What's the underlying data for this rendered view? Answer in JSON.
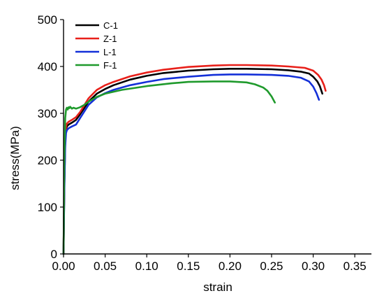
{
  "chart_data": {
    "type": "line",
    "title": "",
    "xlabel": "strain",
    "ylabel": "stress(MPa)",
    "xlim": [
      0,
      0.37
    ],
    "ylim": [
      0,
      500
    ],
    "xticks": [
      0,
      0.05,
      0.1,
      0.15,
      0.2,
      0.25,
      0.3,
      0.35
    ],
    "xtick_labels": [
      "0.00",
      "0.05",
      "0.10",
      "0.15",
      "0.20",
      "0.25",
      "0.30",
      "0.35"
    ],
    "yticks": [
      0,
      100,
      200,
      300,
      400,
      500
    ],
    "ytick_labels": [
      "0",
      "100",
      "200",
      "300",
      "400",
      "500"
    ],
    "grid": false,
    "legend_position": "top-left",
    "series": [
      {
        "name": "C-1",
        "color": "#000000",
        "x": [
          0,
          0.001,
          0.002,
          0.003,
          0.004,
          0.006,
          0.01,
          0.015,
          0.02,
          0.03,
          0.04,
          0.05,
          0.06,
          0.08,
          0.1,
          0.12,
          0.15,
          0.18,
          0.2,
          0.22,
          0.25,
          0.27,
          0.285,
          0.295,
          0.3,
          0.305,
          0.308,
          0.311
        ],
        "y": [
          0,
          150,
          240,
          265,
          272,
          276,
          280,
          286,
          298,
          325,
          342,
          352,
          360,
          372,
          380,
          386,
          391,
          394,
          395,
          395,
          394,
          392,
          389,
          385,
          378,
          368,
          358,
          342
        ]
      },
      {
        "name": "Z-1",
        "color": "#e8201a",
        "x": [
          0,
          0.001,
          0.002,
          0.003,
          0.004,
          0.006,
          0.01,
          0.015,
          0.02,
          0.03,
          0.04,
          0.05,
          0.06,
          0.08,
          0.1,
          0.12,
          0.15,
          0.18,
          0.2,
          0.22,
          0.25,
          0.27,
          0.29,
          0.3,
          0.306,
          0.31,
          0.313,
          0.315
        ],
        "y": [
          0,
          160,
          250,
          272,
          278,
          282,
          286,
          292,
          303,
          332,
          350,
          360,
          367,
          379,
          387,
          393,
          399,
          402,
          403,
          403,
          402,
          400,
          397,
          391,
          382,
          372,
          360,
          348
        ]
      },
      {
        "name": "L-1",
        "color": "#1430d8",
        "x": [
          0,
          0.001,
          0.002,
          0.003,
          0.004,
          0.006,
          0.01,
          0.015,
          0.02,
          0.03,
          0.04,
          0.05,
          0.06,
          0.08,
          0.1,
          0.12,
          0.15,
          0.18,
          0.2,
          0.22,
          0.25,
          0.27,
          0.285,
          0.295,
          0.3,
          0.304,
          0.307
        ],
        "y": [
          0,
          140,
          230,
          258,
          264,
          268,
          272,
          276,
          290,
          318,
          334,
          343,
          350,
          360,
          367,
          373,
          378,
          382,
          383,
          383,
          382,
          380,
          376,
          368,
          357,
          343,
          329
        ]
      },
      {
        "name": "F-1",
        "color": "#1f9a2c",
        "x": [
          0,
          0.001,
          0.002,
          0.003,
          0.004,
          0.005,
          0.006,
          0.007,
          0.008,
          0.01,
          0.012,
          0.015,
          0.02,
          0.025,
          0.03,
          0.04,
          0.05,
          0.07,
          0.1,
          0.13,
          0.15,
          0.18,
          0.2,
          0.22,
          0.23,
          0.24,
          0.245,
          0.25,
          0.254
        ],
        "y": [
          0,
          200,
          290,
          308,
          312,
          308,
          313,
          311,
          314,
          310,
          312,
          310,
          313,
          318,
          325,
          335,
          342,
          350,
          358,
          364,
          367,
          368,
          368,
          366,
          362,
          355,
          348,
          336,
          323
        ]
      }
    ]
  }
}
